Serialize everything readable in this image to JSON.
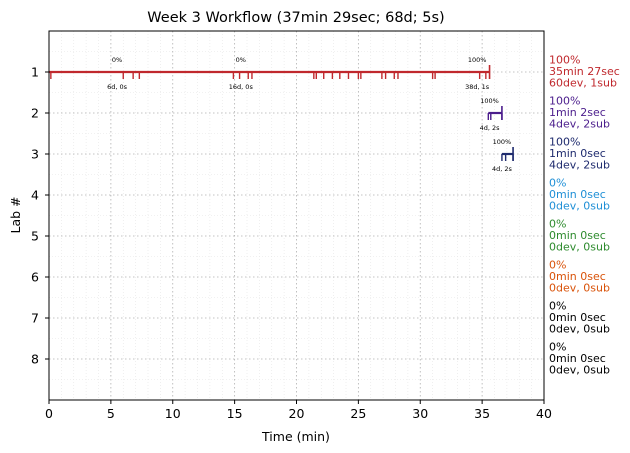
{
  "chart_data": {
    "type": "timeline",
    "title": "Week 3 Workflow (37min 29sec; 68d; 5s)",
    "xlabel": "Time (min)",
    "ylabel": "Lab #",
    "xlim": [
      0,
      40
    ],
    "ylim": [
      9,
      0
    ],
    "x_ticks": [
      "0",
      "5",
      "10",
      "15",
      "20",
      "25",
      "30",
      "35",
      "40"
    ],
    "y_ticks": [
      "1",
      "2",
      "3",
      "4",
      "5",
      "6",
      "7",
      "8"
    ],
    "grid": true,
    "labs": [
      {
        "lab": 1,
        "color": "#c0282d",
        "start": 0,
        "end": 35.6,
        "events": [
          0.15,
          6.0,
          6.8,
          7.3,
          14.9,
          15.4,
          16.1,
          16.4,
          21.4,
          21.6,
          22.2,
          22.9,
          23.5,
          24.2,
          25.0,
          25.2,
          26.9,
          27.2,
          27.9,
          28.2,
          31.0,
          31.2,
          34.8,
          35.3
        ],
        "submission_ends": [
          35.6
        ],
        "milestones": [
          {
            "x": 5.5,
            "percent": "0%",
            "detail": "6d, 0s"
          },
          {
            "x": 15.5,
            "percent": "0%",
            "detail": "16d, 0s"
          },
          {
            "x": 34.6,
            "percent": "100%",
            "detail": "38d, 1s"
          }
        ],
        "summary": [
          "100%",
          "35min 27sec",
          "60dev, 1sub"
        ]
      },
      {
        "lab": 2,
        "color": "#4b1d8c",
        "start": 35.5,
        "end": 36.6,
        "events": [
          35.5,
          35.7,
          36.6
        ],
        "submission_ends": [
          36.6
        ],
        "milestones": [
          {
            "x": 35.6,
            "percent": "100%",
            "detail": "4d, 2s"
          }
        ],
        "summary": [
          "100%",
          "1min 2sec",
          "4dev, 2sub"
        ]
      },
      {
        "lab": 3,
        "color": "#1f2b6e",
        "start": 36.6,
        "end": 37.5,
        "events": [
          36.6,
          36.9,
          37.5
        ],
        "submission_ends": [
          37.5
        ],
        "milestones": [
          {
            "x": 36.6,
            "percent": "100%",
            "detail": "4d, 2s"
          }
        ],
        "summary": [
          "100%",
          "1min 0sec",
          "4dev, 2sub"
        ]
      },
      {
        "lab": 4,
        "color": "#1f8fd6",
        "summary": [
          "0%",
          "0min 0sec",
          "0dev, 0sub"
        ]
      },
      {
        "lab": 5,
        "color": "#2e8b2e",
        "summary": [
          "0%",
          "0min 0sec",
          "0dev, 0sub"
        ]
      },
      {
        "lab": 6,
        "color": "#d9530a",
        "summary": [
          "0%",
          "0min 0sec",
          "0dev, 0sub"
        ]
      },
      {
        "lab": 7,
        "color": "#000000",
        "summary": [
          "0%",
          "0min 0sec",
          "0dev, 0sub"
        ]
      },
      {
        "lab": 8,
        "color": "#000000",
        "summary": [
          "0%",
          "0min 0sec",
          "0dev, 0sub"
        ]
      }
    ]
  }
}
